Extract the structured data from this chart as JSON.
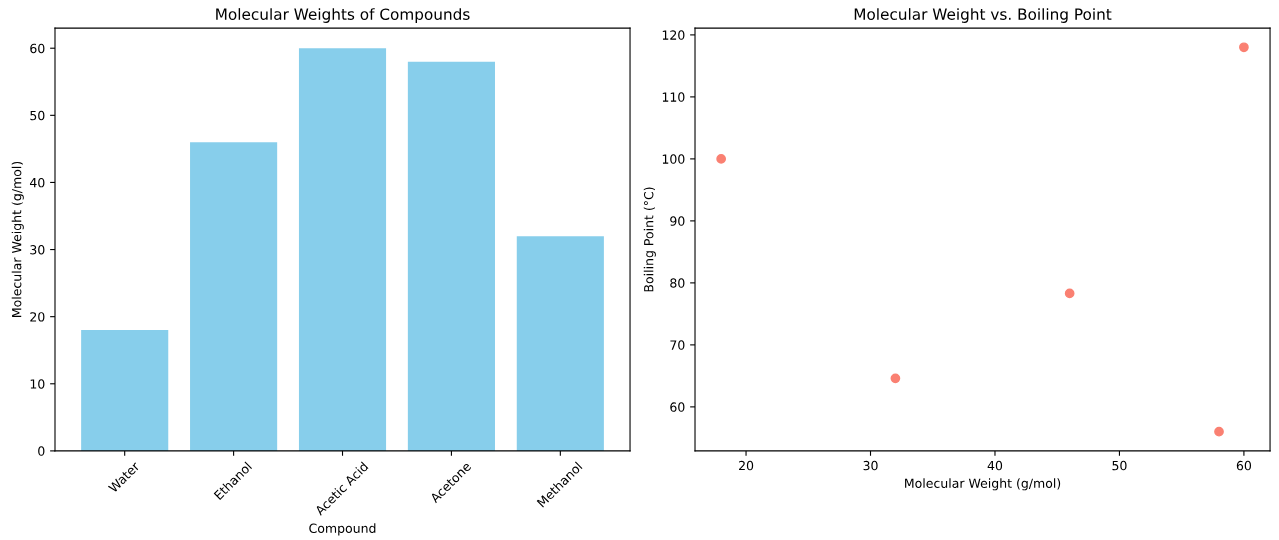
{
  "chart_data": [
    {
      "type": "bar",
      "title": "Molecular Weights of Compounds",
      "xlabel": "Compound",
      "ylabel": "Molecular Weight (g/mol)",
      "categories": [
        "Water",
        "Ethanol",
        "Acetic Acid",
        "Acetone",
        "Methanol"
      ],
      "values": [
        18,
        46,
        60,
        58,
        32
      ],
      "color": "#87ceeb",
      "ylim": [
        0,
        63
      ],
      "yticks": [
        0,
        10,
        20,
        30,
        40,
        50,
        60
      ],
      "grid": false
    },
    {
      "type": "scatter",
      "title": "Molecular Weight vs. Boiling Point",
      "xlabel": "Molecular Weight (g/mol)",
      "ylabel": "Boiling Point (°C)",
      "x": [
        18,
        46,
        60,
        58,
        32
      ],
      "values": [
        100,
        78.3,
        118,
        56,
        64.6
      ],
      "color": "#fa8072",
      "marker": "circle",
      "xlim": [
        15.9,
        62.1
      ],
      "xticks": [
        20,
        30,
        40,
        50,
        60
      ],
      "ylim": [
        52.9,
        121.1
      ],
      "yticks": [
        60,
        70,
        80,
        90,
        100,
        110,
        120
      ],
      "grid": false
    }
  ]
}
